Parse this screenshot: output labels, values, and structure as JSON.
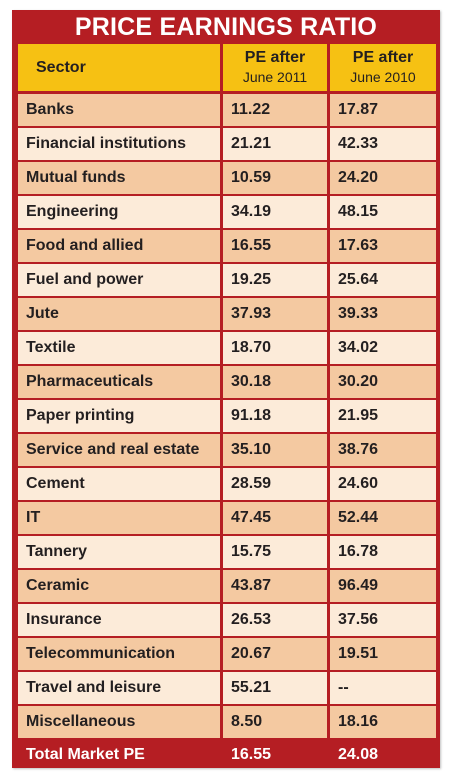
{
  "title": "PRICE EARNINGS RATIO",
  "colors": {
    "red": "#b51e23",
    "header_yellow": "#f6c113",
    "row_a": "#f4c9a1",
    "row_b": "#fcebd9"
  },
  "header": {
    "sector": "Sector",
    "col1_line1": "PE after",
    "col1_line2": "June 2011",
    "col2_line1": "PE after",
    "col2_line2": "June 2010"
  },
  "rows": [
    {
      "sector": "Banks",
      "pe_2011": "11.22",
      "pe_2010": "17.87"
    },
    {
      "sector": "Financial institutions",
      "pe_2011": "21.21",
      "pe_2010": "42.33"
    },
    {
      "sector": "Mutual funds",
      "pe_2011": "10.59",
      "pe_2010": "24.20"
    },
    {
      "sector": "Engineering",
      "pe_2011": "34.19",
      "pe_2010": "48.15"
    },
    {
      "sector": "Food and allied",
      "pe_2011": "16.55",
      "pe_2010": "17.63"
    },
    {
      "sector": "Fuel and power",
      "pe_2011": "19.25",
      "pe_2010": "25.64"
    },
    {
      "sector": "Jute",
      "pe_2011": "37.93",
      "pe_2010": "39.33"
    },
    {
      "sector": "Textile",
      "pe_2011": "18.70",
      "pe_2010": "34.02"
    },
    {
      "sector": "Pharmaceuticals",
      "pe_2011": "30.18",
      "pe_2010": "30.20"
    },
    {
      "sector": "Paper printing",
      "pe_2011": "91.18",
      "pe_2010": "21.95"
    },
    {
      "sector": "Service and real estate",
      "pe_2011": "35.10",
      "pe_2010": "38.76"
    },
    {
      "sector": "Cement",
      "pe_2011": "28.59",
      "pe_2010": "24.60"
    },
    {
      "sector": "IT",
      "pe_2011": "47.45",
      "pe_2010": "52.44"
    },
    {
      "sector": "Tannery",
      "pe_2011": "15.75",
      "pe_2010": "16.78"
    },
    {
      "sector": "Ceramic",
      "pe_2011": "43.87",
      "pe_2010": "96.49"
    },
    {
      "sector": "Insurance",
      "pe_2011": "26.53",
      "pe_2010": "37.56"
    },
    {
      "sector": "Telecommunication",
      "pe_2011": "20.67",
      "pe_2010": "19.51"
    },
    {
      "sector": "Travel and leisure",
      "pe_2011": "55.21",
      "pe_2010": "--"
    },
    {
      "sector": "Miscellaneous",
      "pe_2011": "8.50",
      "pe_2010": "18.16"
    }
  ],
  "total": {
    "sector": "Total Market PE",
    "pe_2011": "16.55",
    "pe_2010": "24.08"
  }
}
